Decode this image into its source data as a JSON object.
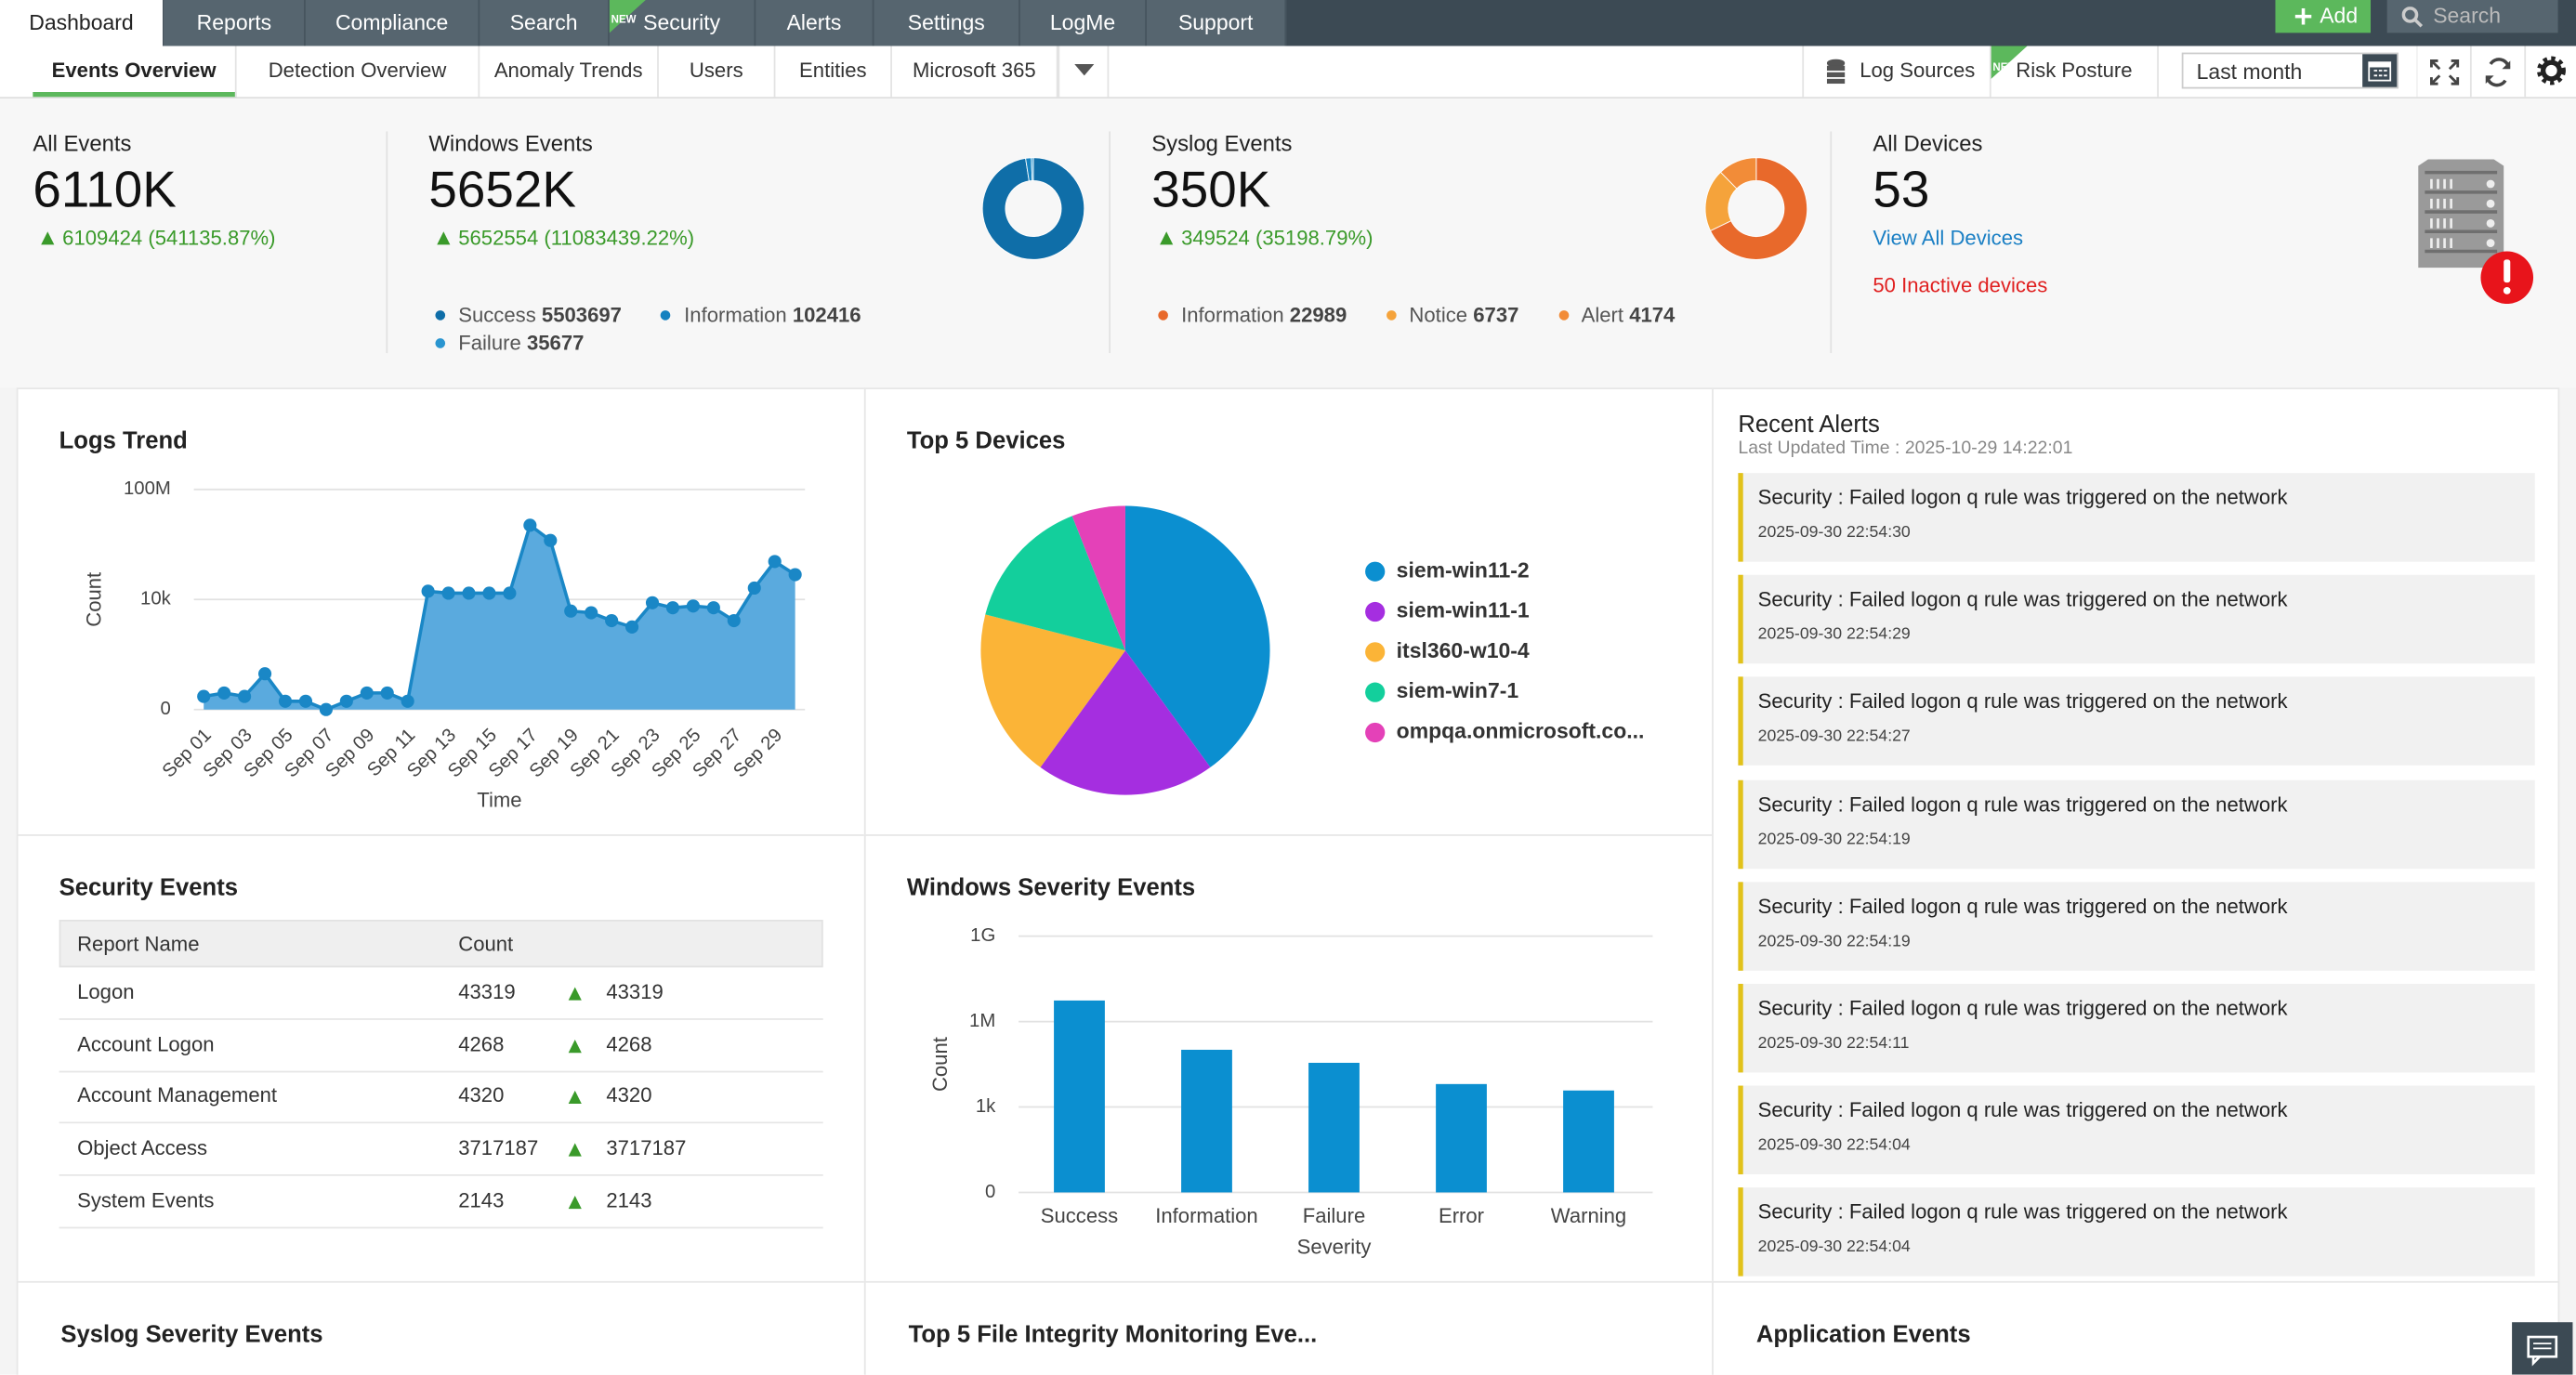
{
  "nav": {
    "tabs": [
      "Dashboard",
      "Reports",
      "Compliance",
      "Search",
      "Security",
      "Alerts",
      "Settings",
      "LogMe",
      "Support"
    ],
    "new_badge": "NEW",
    "add_button": "Add",
    "search_placeholder": "Search"
  },
  "subnav": {
    "tabs": [
      "Events Overview",
      "Detection Overview",
      "Anomaly Trends",
      "Users",
      "Entities",
      "Microsoft 365"
    ],
    "log_sources": "Log Sources",
    "risk_posture": "Risk Posture",
    "period": "Last month"
  },
  "summary": {
    "all_events": {
      "title": "All Events",
      "value": "6110K",
      "change": "6109424 (541135.87%)"
    },
    "windows_events": {
      "title": "Windows Events",
      "value": "5652K",
      "change": "5652554 (11083439.22%)"
    },
    "syslog_events": {
      "title": "Syslog Events",
      "value": "350K",
      "change": "349524 (35198.79%)"
    },
    "all_devices": {
      "title": "All Devices",
      "value": "53",
      "link": "View All Devices",
      "inactive": "50 Inactive devices"
    }
  },
  "chart_data": [
    {
      "type": "donut",
      "categories": [
        "Success",
        "Information",
        "Failure"
      ],
      "values": [
        5503697,
        102416,
        35677
      ],
      "colors": [
        "#0f6ea8",
        "#1582c0",
        "#2a95d0"
      ]
    },
    {
      "type": "donut",
      "categories": [
        "Information",
        "Notice",
        "Alert"
      ],
      "values": [
        22989,
        6737,
        4174
      ],
      "colors": [
        "#e8692b",
        "#f5a33b",
        "#f28c38"
      ]
    },
    {
      "type": "area",
      "title": "Logs Trend",
      "x_label": "Time",
      "y_label": "Count",
      "categories": [
        "Sep 01",
        null,
        "Sep 03",
        null,
        "Sep 05",
        null,
        "Sep 07",
        null,
        "Sep 09",
        null,
        "Sep 11",
        null,
        "Sep 13",
        null,
        "Sep 15",
        null,
        "Sep 17",
        null,
        "Sep 19",
        null,
        "Sep 21",
        null,
        "Sep 23",
        null,
        "Sep 25",
        null,
        "Sep 27",
        null,
        "Sep 29",
        null
      ],
      "values": [
        3,
        4,
        3,
        20,
        2,
        2,
        1,
        2,
        4,
        4,
        2,
        20000,
        17000,
        17000,
        17000,
        17000,
        5000000,
        1400000,
        3800,
        3300,
        1700,
        1000,
        7600,
        5000,
        5800,
        5000,
        1700,
        26000,
        240000,
        80000
      ],
      "color": "#5aaade",
      "line_color": "#1a87c6",
      "log_scale": true,
      "ylim": [
        1,
        100000000
      ],
      "yticks": [
        {
          "value": 1,
          "label": "0"
        },
        {
          "value": 10000,
          "label": "10k"
        },
        {
          "value": 100000000,
          "label": "100M"
        }
      ],
      "grid": true
    },
    {
      "type": "pie",
      "title": "Top 5 Devices",
      "categories": [
        "siem-win11-2",
        "siem-win11-1",
        "itsl360-w10-4",
        "siem-win7-1",
        "ompqa.onmicrosoft.co..."
      ],
      "values": [
        40,
        20,
        19,
        15,
        6
      ],
      "colors": [
        "#0b8fd0",
        "#a52ee0",
        "#fbb437",
        "#13cf9c",
        "#e441b8"
      ]
    },
    {
      "type": "bar",
      "title": "Windows Severity Events",
      "x_label": "Severity",
      "y_label": "Count",
      "categories": [
        "Success",
        "Information",
        "Failure",
        "Error",
        "Warning"
      ],
      "values": [
        5503697,
        102416,
        35677,
        6400,
        3800
      ],
      "color": "#0b8fd0",
      "log_scale": true,
      "ylim": [
        1,
        1000000000
      ],
      "yticks": [
        {
          "value": 1,
          "label": "0"
        },
        {
          "value": 1000,
          "label": "1k"
        },
        {
          "value": 1000000,
          "label": "1M"
        },
        {
          "value": 1000000000,
          "label": "1G"
        }
      ],
      "grid": true
    }
  ],
  "security_events": {
    "title": "Security Events",
    "columns": [
      "Report Name",
      "Count"
    ],
    "rows": [
      [
        "Logon",
        "43319",
        "43319"
      ],
      [
        "Account Logon",
        "4268",
        "4268"
      ],
      [
        "Account Management",
        "4320",
        "4320"
      ],
      [
        "Object Access",
        "3717187",
        "3717187"
      ],
      [
        "System Events",
        "2143",
        "2143"
      ]
    ]
  },
  "recent_alerts": {
    "title": "Recent Alerts",
    "updated": "Last Updated Time : 2025-10-29 14:22:01",
    "items": [
      {
        "message": "Security : Failed logon q rule was triggered on the network",
        "time": "2025-09-30 22:54:30"
      },
      {
        "message": "Security : Failed logon q rule was triggered on the network",
        "time": "2025-09-30 22:54:29"
      },
      {
        "message": "Security : Failed logon q rule was triggered on the network",
        "time": "2025-09-30 22:54:27"
      },
      {
        "message": "Security : Failed logon q rule was triggered on the network",
        "time": "2025-09-30 22:54:19"
      },
      {
        "message": "Security : Failed logon q rule was triggered on the network",
        "time": "2025-09-30 22:54:19"
      },
      {
        "message": "Security : Failed logon q rule was triggered on the network",
        "time": "2025-09-30 22:54:11"
      },
      {
        "message": "Security : Failed logon q rule was triggered on the network",
        "time": "2025-09-30 22:54:04"
      },
      {
        "message": "Security : Failed logon q rule was triggered on the network",
        "time": "2025-09-30 22:54:04"
      }
    ]
  },
  "more_panels": [
    "Syslog Severity Events",
    "Top 5 File Integrity Monitoring Eve...",
    "Application Events"
  ]
}
